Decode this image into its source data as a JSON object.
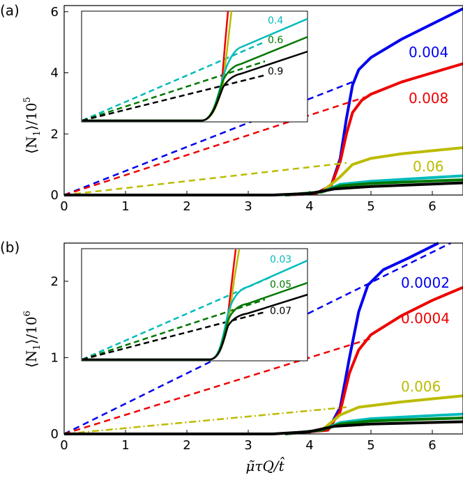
{
  "chart_data": [
    {
      "panel_label": "(a)",
      "type": "line",
      "ylabel_main": "⟨N",
      "ylabel_sub": "1",
      "ylabel_tail": "⟩/10",
      "ylabel_exp": "5",
      "xlabel": "μ̃τQ/t̂",
      "xlim": [
        0,
        6.5
      ],
      "ylim": [
        0,
        6.2
      ],
      "xticks": [
        "0",
        "1",
        "2",
        "3",
        "4",
        "5",
        "6"
      ],
      "yticks": [
        "0",
        "2",
        "4",
        "6"
      ],
      "series": [
        {
          "name": "0.004",
          "color": "#0000ee",
          "solid": [
            [
              3.6,
              0
            ],
            [
              4.1,
              0.05
            ],
            [
              4.35,
              0.3
            ],
            [
              4.5,
              1.2
            ],
            [
              4.6,
              2.5
            ],
            [
              4.7,
              3.6
            ],
            [
              4.8,
              4.1
            ],
            [
              5.0,
              4.5
            ],
            [
              5.5,
              5.1
            ],
            [
              6.0,
              5.6
            ],
            [
              6.5,
              6.1
            ]
          ],
          "dashed": [
            [
              0,
              0
            ],
            [
              4.7,
              3.7
            ]
          ]
        },
        {
          "name": "0.008",
          "color": "#ee0000",
          "solid": [
            [
              3.6,
              0
            ],
            [
              4.1,
              0.05
            ],
            [
              4.35,
              0.3
            ],
            [
              4.5,
              1.1
            ],
            [
              4.6,
              2.0
            ],
            [
              4.7,
              2.7
            ],
            [
              4.85,
              3.1
            ],
            [
              5.0,
              3.3
            ],
            [
              5.5,
              3.7
            ],
            [
              6.0,
              4.0
            ],
            [
              6.5,
              4.3
            ]
          ],
          "dashed": [
            [
              0,
              0
            ],
            [
              4.9,
              3.2
            ]
          ]
        },
        {
          "name": "0.06",
          "color": "#bbbb00",
          "solid": [
            [
              3.6,
              0
            ],
            [
              4.2,
              0.1
            ],
            [
              4.5,
              0.6
            ],
            [
              4.7,
              1.0
            ],
            [
              5.0,
              1.2
            ],
            [
              5.5,
              1.35
            ],
            [
              6.0,
              1.45
            ],
            [
              6.5,
              1.55
            ]
          ],
          "dashed": [
            [
              0,
              0
            ],
            [
              4.6,
              1.05
            ]
          ]
        },
        {
          "name": "teal",
          "color": "#00bbbb",
          "solid": [
            [
              3.6,
              0
            ],
            [
              4.2,
              0.1
            ],
            [
              4.5,
              0.35
            ],
            [
              5.0,
              0.45
            ],
            [
              6.5,
              0.63
            ]
          ],
          "dashed": []
        },
        {
          "name": "green",
          "color": "#007700",
          "solid": [
            [
              3.6,
              0
            ],
            [
              4.2,
              0.1
            ],
            [
              4.5,
              0.3
            ],
            [
              5.0,
              0.38
            ],
            [
              6.5,
              0.5
            ]
          ],
          "dashed": []
        },
        {
          "name": "black",
          "color": "#000000",
          "solid": [
            [
              0,
              0
            ],
            [
              3.4,
              0
            ],
            [
              4.0,
              0.05
            ],
            [
              4.4,
              0.2
            ],
            [
              5.0,
              0.28
            ],
            [
              6.5,
              0.4
            ]
          ],
          "dashed": []
        }
      ],
      "line_labels": [
        {
          "text": "0.004",
          "color": "#0000ee"
        },
        {
          "text": "0.008",
          "color": "#ee0000"
        },
        {
          "text": "0.06",
          "color": "#bbbb00"
        }
      ],
      "inset": {
        "labels": [
          {
            "text": "0.4",
            "color": "#00bbbb"
          },
          {
            "text": "0.6",
            "color": "#007700"
          },
          {
            "text": "0.9",
            "color": "#000000"
          }
        ]
      }
    },
    {
      "panel_label": "(b)",
      "type": "line",
      "ylabel_main": "⟨N",
      "ylabel_sub": "1",
      "ylabel_tail": "⟩/10",
      "ylabel_exp": "6",
      "xlabel": "μ̃τQ/t̂",
      "xlim": [
        0,
        6.5
      ],
      "ylim": [
        0,
        2.5
      ],
      "xticks": [
        "0",
        "1",
        "2",
        "3",
        "4",
        "5",
        "6"
      ],
      "yticks": [
        "0",
        "1",
        "2"
      ],
      "series": [
        {
          "name": "0.0002",
          "color": "#0000ee",
          "solid": [
            [
              3.6,
              0
            ],
            [
              4.3,
              0.05
            ],
            [
              4.5,
              0.35
            ],
            [
              4.65,
              1.0
            ],
            [
              4.8,
              1.6
            ],
            [
              4.95,
              1.95
            ],
            [
              5.2,
              2.15
            ],
            [
              5.6,
              2.3
            ],
            [
              6.1,
              2.5
            ]
          ],
          "dashed": [
            [
              0,
              0
            ],
            [
              6.3,
              2.5
            ]
          ]
        },
        {
          "name": "0.0004",
          "color": "#ee0000",
          "solid": [
            [
              3.6,
              0
            ],
            [
              4.3,
              0.05
            ],
            [
              4.5,
              0.3
            ],
            [
              4.65,
              0.8
            ],
            [
              4.8,
              1.1
            ],
            [
              5.0,
              1.3
            ],
            [
              5.5,
              1.55
            ],
            [
              6.0,
              1.75
            ],
            [
              6.5,
              1.92
            ]
          ],
          "dashed": [
            [
              0,
              0
            ],
            [
              5.0,
              1.25
            ]
          ]
        },
        {
          "name": "0.006",
          "color": "#bbbb00",
          "solid": [
            [
              3.6,
              0
            ],
            [
              4.2,
              0.05
            ],
            [
              4.5,
              0.25
            ],
            [
              4.8,
              0.35
            ],
            [
              5.5,
              0.42
            ],
            [
              6.5,
              0.5
            ]
          ],
          "dashed": [
            [
              0,
              0
            ],
            [
              4.6,
              0.35
            ]
          ]
        },
        {
          "name": "teal",
          "color": "#00bbbb",
          "solid": [
            [
              3.6,
              0
            ],
            [
              4.2,
              0.05
            ],
            [
              4.5,
              0.15
            ],
            [
              5.0,
              0.2
            ],
            [
              6.5,
              0.26
            ]
          ],
          "dashed": []
        },
        {
          "name": "green",
          "color": "#007700",
          "solid": [
            [
              3.6,
              0
            ],
            [
              4.2,
              0.05
            ],
            [
              4.5,
              0.13
            ],
            [
              5.0,
              0.17
            ],
            [
              6.5,
              0.21
            ]
          ],
          "dashed": []
        },
        {
          "name": "black",
          "color": "#000000",
          "solid": [
            [
              0,
              0
            ],
            [
              3.4,
              0
            ],
            [
              4.0,
              0.03
            ],
            [
              4.4,
              0.1
            ],
            [
              5.0,
              0.13
            ],
            [
              6.5,
              0.16
            ]
          ],
          "dashed": []
        }
      ],
      "line_labels": [
        {
          "text": "0.0002",
          "color": "#0000ee"
        },
        {
          "text": "0.0004",
          "color": "#ee0000"
        },
        {
          "text": "0.006",
          "color": "#bbbb00"
        }
      ],
      "inset": {
        "labels": [
          {
            "text": "0.03",
            "color": "#00bbbb"
          },
          {
            "text": "0.05",
            "color": "#007700"
          },
          {
            "text": "0.07",
            "color": "#000000"
          }
        ]
      }
    }
  ]
}
